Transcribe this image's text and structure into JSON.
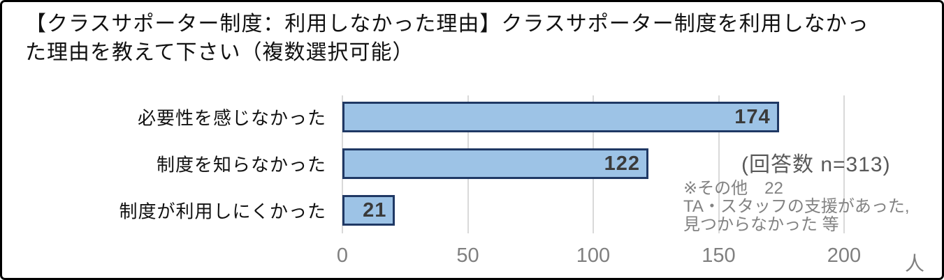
{
  "title": {
    "lines": [
      "【クラスサポーター制度：利用しなかった理由】クラスサポーター制度を利用しなかっ",
      "た理由を教えて下さい（複数選択可能）"
    ]
  },
  "chart_data": {
    "type": "bar",
    "orientation": "horizontal",
    "title": "【クラスサポーター制度：利用しなかった理由】クラスサポーター制度を利用しなかった理由を教えて下さい（複数選択可能）",
    "categories": [
      "必要性を感じなかった",
      "制度を知らなかった",
      "制度が利用しにくかった"
    ],
    "values": [
      174,
      122,
      21
    ],
    "xticks": [
      0,
      50,
      100,
      150,
      200
    ],
    "xlim": [
      0,
      215
    ],
    "xlabel": "人",
    "grid": "vertical-only",
    "legend": "none",
    "colors": {
      "bar_fill": "#9DC3E6",
      "bar_border": "#1F3864",
      "gridline": "#D9D9D9",
      "value_label": "#3A3A3A",
      "tick_label": "#7F7F7F",
      "annotation": "#828282"
    }
  },
  "annotations": {
    "respondents": "(回答数 n=313)",
    "notes": [
      "※その他　22",
      "TA・スタッフの支援があった,",
      "見つからなかった 等"
    ]
  }
}
